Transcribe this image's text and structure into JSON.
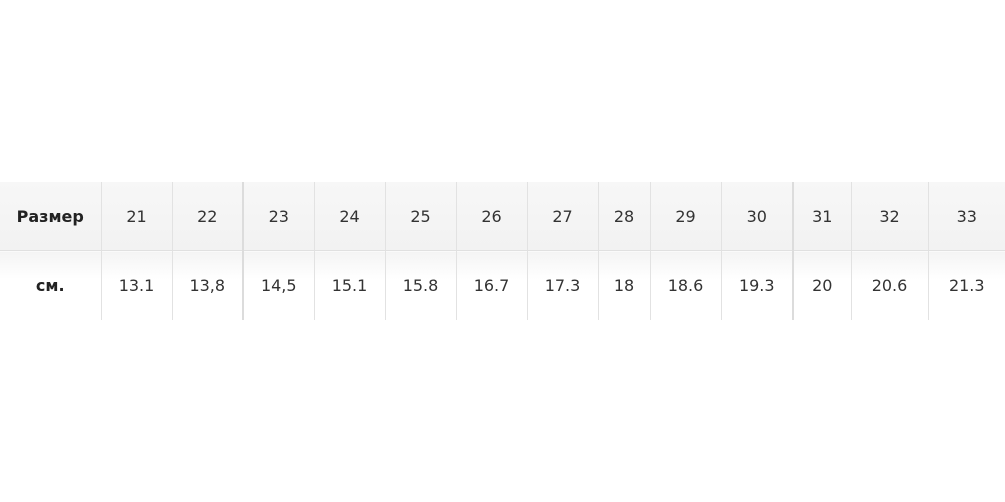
{
  "table": {
    "header_label": "Размер",
    "row_label": "см.",
    "sizes": [
      "21",
      "22",
      "23",
      "24",
      "25",
      "26",
      "27",
      "28",
      "29",
      "30",
      "31",
      "32",
      "33"
    ],
    "cm": [
      "13.1",
      "13,8",
      "14,5",
      "15.1",
      "15.8",
      "16.7",
      "17.3",
      "18",
      "18.6",
      "19.3",
      "20",
      "20.6",
      "21.3"
    ]
  }
}
